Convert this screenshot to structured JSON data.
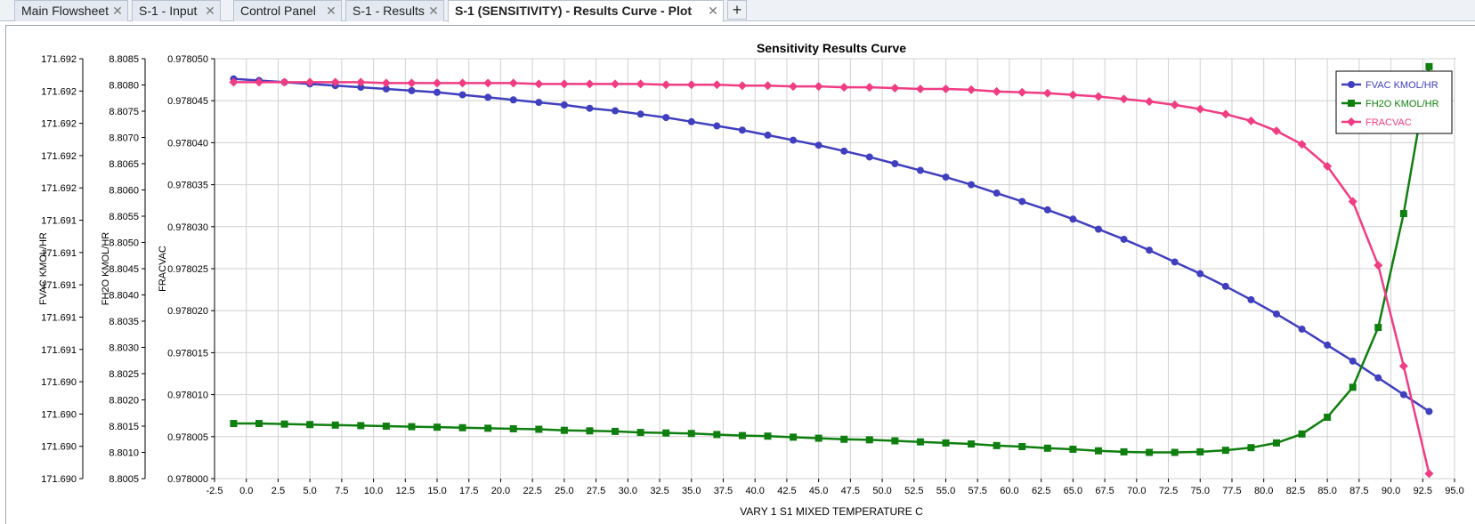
{
  "tabs": [
    {
      "label": "Main Flowsheet",
      "active": false
    },
    {
      "label": "S-1 - Input",
      "active": false
    },
    {
      "label": "Control Panel",
      "active": false
    },
    {
      "label": "S-1 - Results",
      "active": false
    },
    {
      "label": "S-1 (SENSITIVITY) - Results Curve - Plot",
      "active": true
    }
  ],
  "tab_close_glyph": "✕",
  "add_tab_glyph": "+",
  "chart_data": {
    "type": "line",
    "title": "Sensitivity Results Curve",
    "xlabel": "VARY   1 S1 MIXED TEMPERATURE C",
    "xlim": [
      -2.5,
      95.0
    ],
    "x_ticks": [
      "-2.5",
      "0.0",
      "2.5",
      "5.0",
      "7.5",
      "10.0",
      "12.5",
      "15.0",
      "17.5",
      "20.0",
      "22.5",
      "25.0",
      "27.5",
      "30.0",
      "32.5",
      "35.0",
      "37.5",
      "40.0",
      "42.5",
      "45.0",
      "47.5",
      "50.0",
      "52.5",
      "55.0",
      "57.5",
      "60.0",
      "62.5",
      "65.0",
      "67.5",
      "70.0",
      "72.5",
      "75.0",
      "77.5",
      "80.0",
      "82.5",
      "85.0",
      "87.5",
      "90.0",
      "92.5",
      "95.0"
    ],
    "grid": true,
    "legend_position": "top-right",
    "x": [
      -1,
      1,
      3,
      5,
      7,
      9,
      11,
      13,
      15,
      17,
      19,
      21,
      23,
      25,
      27,
      29,
      31,
      33,
      35,
      37,
      39,
      41,
      43,
      45,
      47,
      49,
      51,
      53,
      55,
      57,
      59,
      61,
      63,
      65,
      67,
      69,
      71,
      73,
      75,
      77,
      79,
      81,
      83,
      85,
      87,
      89,
      91,
      93
    ],
    "axes": [
      {
        "id": "fvac",
        "label": "FVAC KMOL/HR",
        "tick_labels": [
          "171.690",
          "171.690",
          "171.690",
          "171.690",
          "171.691",
          "171.691",
          "171.691",
          "171.691",
          "171.691",
          "171.692",
          "171.692",
          "171.692",
          "171.692",
          "171.692"
        ]
      },
      {
        "id": "fh2o",
        "label": "FH2O KMOL/HR",
        "tick_labels": [
          "8.8005",
          "8.8010",
          "8.8015",
          "8.8020",
          "8.8025",
          "8.8030",
          "8.8035",
          "8.8040",
          "8.8045",
          "8.8050",
          "8.8055",
          "8.8060",
          "8.8065",
          "8.8070",
          "8.8075",
          "8.8080",
          "8.8085"
        ],
        "ylim": [
          8.8005,
          8.8085
        ]
      },
      {
        "id": "fracvac",
        "label": "FRACVAC",
        "tick_labels": [
          "0.978000",
          "0.978005",
          "0.978010",
          "0.978015",
          "0.978020",
          "0.978025",
          "0.978030",
          "0.978035",
          "0.978040",
          "0.978045",
          "0.978050"
        ],
        "ylim": [
          0.978,
          0.97805
        ]
      }
    ],
    "series": [
      {
        "name": "FVAC KMOL/HR",
        "color": "#3f3fbf",
        "marker": "circle",
        "axis_ref": "fracvac",
        "values": [
          0.9780476,
          0.9780474,
          0.9780472,
          0.978047,
          0.9780468,
          0.9780466,
          0.9780464,
          0.9780462,
          0.978046,
          0.9780457,
          0.9780454,
          0.9780451,
          0.9780448,
          0.9780445,
          0.9780441,
          0.9780438,
          0.9780434,
          0.978043,
          0.9780425,
          0.978042,
          0.9780415,
          0.9780409,
          0.9780403,
          0.9780397,
          0.978039,
          0.9780383,
          0.9780375,
          0.9780367,
          0.9780359,
          0.978035,
          0.978034,
          0.978033,
          0.978032,
          0.9780309,
          0.9780297,
          0.9780285,
          0.9780272,
          0.9780258,
          0.9780244,
          0.9780229,
          0.9780213,
          0.9780196,
          0.9780178,
          0.9780159,
          0.978014,
          0.978012,
          0.97801,
          0.978008
        ]
      },
      {
        "name": "FH2O KMOL/HR",
        "color": "#0f7f0f",
        "marker": "square",
        "axis_ref": "fh2o",
        "values": [
          8.80155,
          8.80155,
          8.80154,
          8.80153,
          8.80152,
          8.80151,
          8.8015,
          8.80149,
          8.80148,
          8.80147,
          8.80146,
          8.80145,
          8.80144,
          8.80142,
          8.80141,
          8.8014,
          8.80138,
          8.80137,
          8.80136,
          8.80134,
          8.80132,
          8.80131,
          8.80129,
          8.80127,
          8.80125,
          8.80124,
          8.80122,
          8.8012,
          8.80118,
          8.80116,
          8.80113,
          8.80111,
          8.80108,
          8.80106,
          8.80103,
          8.80101,
          8.801,
          8.801,
          8.80101,
          8.80104,
          8.80109,
          8.80118,
          8.80135,
          8.80167,
          8.80224,
          8.80338,
          8.80555,
          8.80835
        ]
      },
      {
        "name": "FRACVAC",
        "color": "#f03c83",
        "marker": "diamond",
        "axis_ref": "fracvac",
        "values": [
          0.9780472,
          0.9780472,
          0.9780472,
          0.9780472,
          0.9780472,
          0.9780472,
          0.9780471,
          0.9780471,
          0.9780471,
          0.9780471,
          0.9780471,
          0.9780471,
          0.978047,
          0.978047,
          0.978047,
          0.978047,
          0.978047,
          0.9780469,
          0.9780469,
          0.9780469,
          0.9780468,
          0.9780468,
          0.9780467,
          0.9780467,
          0.9780466,
          0.9780466,
          0.9780465,
          0.9780464,
          0.9780464,
          0.9780463,
          0.9780461,
          0.978046,
          0.9780459,
          0.9780457,
          0.9780455,
          0.9780452,
          0.9780449,
          0.9780445,
          0.978044,
          0.9780434,
          0.9780426,
          0.9780414,
          0.9780398,
          0.9780372,
          0.978033,
          0.9780254,
          0.9780134,
          0.9780006
        ]
      }
    ]
  }
}
